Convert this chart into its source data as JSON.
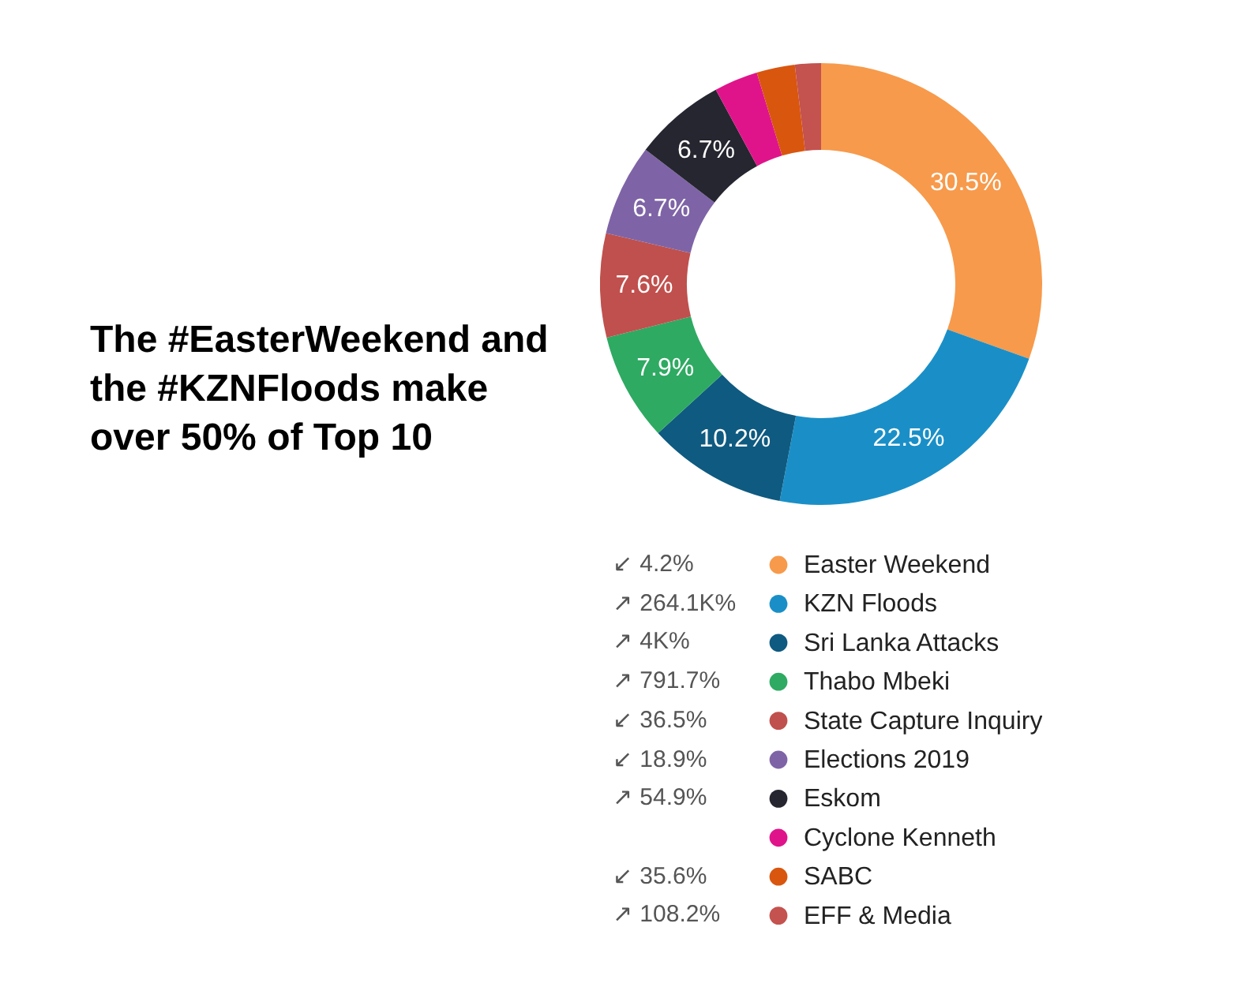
{
  "chart_data": {
    "type": "donut",
    "title": "The #EasterWeekend and the #KZNFloods make over 50% of Top 10",
    "categories": [
      "Easter Weekend",
      "KZN Floods",
      "Sri Lanka Attacks",
      "Thabo Mbeki",
      "State Capture Inquiry",
      "Elections 2019",
      "Eskom",
      "Cyclone Kenneth",
      "SABC",
      "EFF & Media"
    ],
    "values": [
      30.5,
      22.5,
      10.2,
      7.9,
      7.6,
      6.7,
      6.7,
      3.2,
      2.8,
      1.9
    ],
    "colors": [
      "#f79a4b",
      "#1a8fc7",
      "#0f5a80",
      "#2eaa62",
      "#c0504d",
      "#7e64a6",
      "#262630",
      "#e0148a",
      "#d9560f",
      "#c4524e"
    ],
    "value_labels": [
      "30.5%",
      "22.5%",
      "10.2%",
      "7.9%",
      "7.6%",
      "6.7%",
      "6.7%",
      null,
      null,
      null
    ],
    "legend": "bottom",
    "annotations": [
      {
        "text": "↙ 4.2%",
        "x": "Easter Weekend"
      },
      {
        "text": "↗ 264.1K%",
        "x": "KZN Floods"
      },
      {
        "text": "↗ 4K%",
        "x": "Sri Lanka Attacks"
      },
      {
        "text": "↗ 791.7%",
        "x": "Thabo Mbeki"
      },
      {
        "text": "↙ 36.5%",
        "x": "State Capture Inquiry"
      },
      {
        "text": "↙ 18.9%",
        "x": "Elections 2019"
      },
      {
        "text": "↗ 54.9%",
        "x": "Eskom"
      },
      {
        "text": "↙ 35.6%",
        "x": "SABC"
      },
      {
        "text": "↗ 108.2%",
        "x": "EFF & Media"
      }
    ]
  }
}
